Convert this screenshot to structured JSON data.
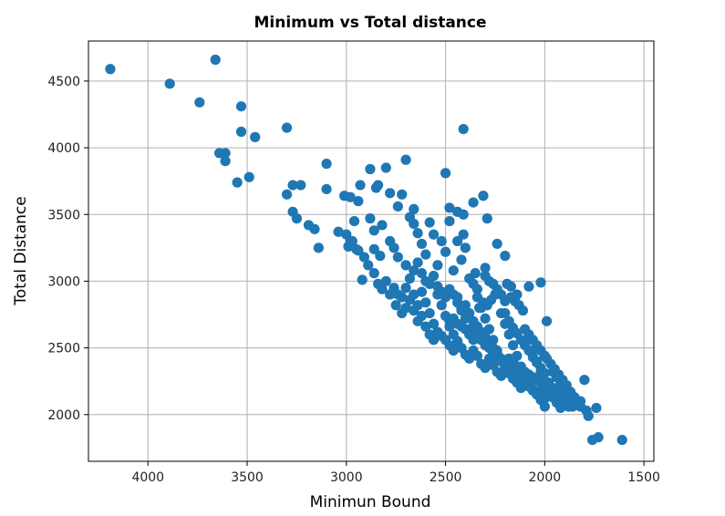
{
  "chart_data": {
    "type": "scatter",
    "title": "Minimum vs Total distance",
    "xlabel": "Minimun Bound",
    "ylabel": "Total Distance",
    "x_reversed": true,
    "xlim": [
      4300,
      1450
    ],
    "ylim": [
      1650,
      4800
    ],
    "xticks": [
      4000,
      3500,
      3000,
      2500,
      2000,
      1500
    ],
    "yticks": [
      2000,
      2500,
      3000,
      3500,
      4000,
      4500
    ],
    "grid": true,
    "color": "#1f77b4",
    "points": [
      [
        4190,
        4590
      ],
      [
        3890,
        4480
      ],
      [
        3660,
        4660
      ],
      [
        3740,
        4340
      ],
      [
        3530,
        4310
      ],
      [
        3530,
        4120
      ],
      [
        3460,
        4080
      ],
      [
        3300,
        4150
      ],
      [
        3640,
        3960
      ],
      [
        3610,
        3960
      ],
      [
        3610,
        3900
      ],
      [
        3550,
        3740
      ],
      [
        3490,
        3780
      ],
      [
        2410,
        4140
      ],
      [
        3270,
        3720
      ],
      [
        3230,
        3720
      ],
      [
        3300,
        3650
      ],
      [
        3270,
        3520
      ],
      [
        3250,
        3470
      ],
      [
        3190,
        3420
      ],
      [
        3160,
        3390
      ],
      [
        3140,
        3250
      ],
      [
        3100,
        3880
      ],
      [
        3100,
        3690
      ],
      [
        3010,
        3640
      ],
      [
        2980,
        3630
      ],
      [
        2930,
        3720
      ],
      [
        2940,
        3600
      ],
      [
        2880,
        3840
      ],
      [
        2850,
        3700
      ],
      [
        2840,
        3720
      ],
      [
        2800,
        3850
      ],
      [
        2780,
        3660
      ],
      [
        2700,
        3910
      ],
      [
        2720,
        3650
      ],
      [
        2740,
        3560
      ],
      [
        2660,
        3540
      ],
      [
        2680,
        3480
      ],
      [
        2500,
        3810
      ],
      [
        2480,
        3550
      ],
      [
        2440,
        3520
      ],
      [
        2360,
        3590
      ],
      [
        2310,
        3640
      ],
      [
        2290,
        3470
      ],
      [
        2410,
        3500
      ],
      [
        2410,
        3350
      ],
      [
        3040,
        3370
      ],
      [
        3000,
        3350
      ],
      [
        2980,
        3300
      ],
      [
        2990,
        3260
      ],
      [
        2940,
        3230
      ],
      [
        2920,
        3010
      ],
      [
        2960,
        3450
      ],
      [
        2880,
        3470
      ],
      [
        2860,
        3380
      ],
      [
        2820,
        3420
      ],
      [
        2780,
        3300
      ],
      [
        2760,
        3250
      ],
      [
        2740,
        3180
      ],
      [
        2700,
        3120
      ],
      [
        2660,
        3430
      ],
      [
        2640,
        3360
      ],
      [
        2620,
        3280
      ],
      [
        2600,
        3200
      ],
      [
        2580,
        3440
      ],
      [
        2560,
        3350
      ],
      [
        2540,
        3120
      ],
      [
        2520,
        3300
      ],
      [
        2500,
        3220
      ],
      [
        2480,
        3450
      ],
      [
        2460,
        3080
      ],
      [
        2440,
        3300
      ],
      [
        2420,
        3160
      ],
      [
        2400,
        3250
      ],
      [
        2380,
        3020
      ],
      [
        2360,
        2980
      ],
      [
        2340,
        2940
      ],
      [
        2300,
        3100
      ],
      [
        2240,
        3280
      ],
      [
        2200,
        3190
      ],
      [
        2190,
        2980
      ],
      [
        2170,
        2960
      ],
      [
        2140,
        2900
      ],
      [
        2080,
        2960
      ],
      [
        2020,
        2990
      ],
      [
        1990,
        2700
      ],
      [
        2800,
        3000
      ],
      [
        2760,
        2950
      ],
      [
        2740,
        2900
      ],
      [
        2720,
        2880
      ],
      [
        2700,
        2950
      ],
      [
        2680,
        2860
      ],
      [
        2660,
        2780
      ],
      [
        2640,
        2700
      ],
      [
        2620,
        2920
      ],
      [
        2600,
        2840
      ],
      [
        2580,
        2760
      ],
      [
        2560,
        2680
      ],
      [
        2540,
        2900
      ],
      [
        2520,
        2820
      ],
      [
        2500,
        2740
      ],
      [
        2480,
        2660
      ],
      [
        2460,
        2600
      ],
      [
        2440,
        2880
      ],
      [
        2420,
        2800
      ],
      [
        2400,
        2720
      ],
      [
        2380,
        2640
      ],
      [
        2360,
        2560
      ],
      [
        2340,
        2880
      ],
      [
        2320,
        2800
      ],
      [
        2300,
        2720
      ],
      [
        2280,
        2640
      ],
      [
        2260,
        2560
      ],
      [
        2240,
        2480
      ],
      [
        2220,
        2760
      ],
      [
        2200,
        2680
      ],
      [
        2180,
        2600
      ],
      [
        2160,
        2520
      ],
      [
        2140,
        2440
      ],
      [
        2120,
        2360
      ],
      [
        2100,
        2640
      ],
      [
        2080,
        2560
      ],
      [
        2060,
        2480
      ],
      [
        2040,
        2400
      ],
      [
        2020,
        2320
      ],
      [
        2000,
        2240
      ],
      [
        2500,
        2560
      ],
      [
        2480,
        2520
      ],
      [
        2460,
        2480
      ],
      [
        2440,
        2550
      ],
      [
        2420,
        2500
      ],
      [
        2400,
        2450
      ],
      [
        2380,
        2420
      ],
      [
        2360,
        2480
      ],
      [
        2340,
        2440
      ],
      [
        2320,
        2380
      ],
      [
        2300,
        2350
      ],
      [
        2280,
        2420
      ],
      [
        2260,
        2370
      ],
      [
        2240,
        2320
      ],
      [
        2220,
        2290
      ],
      [
        2200,
        2360
      ],
      [
        2180,
        2310
      ],
      [
        2160,
        2270
      ],
      [
        2140,
        2240
      ],
      [
        2120,
        2200
      ],
      [
        2100,
        2280
      ],
      [
        2080,
        2230
      ],
      [
        2060,
        2180
      ],
      [
        2040,
        2150
      ],
      [
        2020,
        2110
      ],
      [
        2000,
        2060
      ],
      [
        1980,
        2180
      ],
      [
        1960,
        2130
      ],
      [
        1940,
        2090
      ],
      [
        1920,
        2050
      ],
      [
        1900,
        2100
      ],
      [
        1880,
        2060
      ],
      [
        1960,
        2320
      ],
      [
        1940,
        2280
      ],
      [
        1920,
        2230
      ],
      [
        1900,
        2190
      ],
      [
        1880,
        2150
      ],
      [
        1860,
        2120
      ],
      [
        1840,
        2090
      ],
      [
        1820,
        2060
      ],
      [
        1990,
        2420
      ],
      [
        1970,
        2380
      ],
      [
        1950,
        2340
      ],
      [
        1930,
        2300
      ],
      [
        1910,
        2260
      ],
      [
        1890,
        2220
      ],
      [
        1870,
        2170
      ],
      [
        1850,
        2130
      ],
      [
        1800,
        2260
      ],
      [
        1820,
        2100
      ],
      [
        1790,
        2030
      ],
      [
        1780,
        1990
      ],
      [
        1740,
        2050
      ],
      [
        1760,
        1810
      ],
      [
        1730,
        1830
      ],
      [
        1610,
        1810
      ],
      [
        2200,
        2760
      ],
      [
        2180,
        2700
      ],
      [
        2160,
        2650
      ],
      [
        2140,
        2610
      ],
      [
        2120,
        2560
      ],
      [
        2100,
        2520
      ],
      [
        2080,
        2480
      ],
      [
        2060,
        2430
      ],
      [
        2040,
        2390
      ],
      [
        2020,
        2350
      ],
      [
        2000,
        2310
      ],
      [
        2060,
        2560
      ],
      [
        2040,
        2520
      ],
      [
        2020,
        2480
      ],
      [
        2000,
        2440
      ],
      [
        2080,
        2600
      ],
      [
        2580,
        2600
      ],
      [
        2560,
        2560
      ],
      [
        2540,
        2620
      ],
      [
        2520,
        2590
      ],
      [
        2600,
        2660
      ],
      [
        2620,
        2740
      ],
      [
        2640,
        2820
      ],
      [
        2660,
        2900
      ],
      [
        2700,
        2800
      ],
      [
        2720,
        2760
      ],
      [
        2750,
        2820
      ],
      [
        2780,
        2900
      ],
      [
        2820,
        2940
      ],
      [
        2840,
        2980
      ],
      [
        2860,
        3060
      ],
      [
        2890,
        3120
      ],
      [
        2910,
        3180
      ],
      [
        2950,
        3240
      ],
      [
        2970,
        3300
      ],
      [
        2830,
        3190
      ],
      [
        2860,
        3240
      ],
      [
        2680,
        3020
      ],
      [
        2660,
        3080
      ],
      [
        2640,
        3140
      ],
      [
        2620,
        3060
      ],
      [
        2600,
        3000
      ],
      [
        2580,
        2980
      ],
      [
        2560,
        3040
      ],
      [
        2540,
        2960
      ],
      [
        2520,
        2920
      ],
      [
        2500,
        2880
      ],
      [
        2480,
        2940
      ],
      [
        2460,
        2900
      ],
      [
        2440,
        2840
      ],
      [
        2420,
        2780
      ],
      [
        2400,
        2820
      ],
      [
        2380,
        2760
      ],
      [
        2360,
        2700
      ],
      [
        2340,
        2660
      ],
      [
        2320,
        2620
      ],
      [
        2300,
        2580
      ],
      [
        2280,
        2540
      ],
      [
        2260,
        2500
      ],
      [
        2240,
        2460
      ],
      [
        2220,
        2420
      ],
      [
        2200,
        2390
      ],
      [
        2180,
        2350
      ],
      [
        2160,
        2330
      ],
      [
        2140,
        2300
      ],
      [
        2120,
        2270
      ],
      [
        2100,
        2250
      ],
      [
        2080,
        2210
      ],
      [
        2060,
        2190
      ],
      [
        2040,
        2170
      ],
      [
        2020,
        2140
      ],
      [
        2000,
        2120
      ],
      [
        2480,
        2700
      ],
      [
        2460,
        2720
      ],
      [
        2440,
        2680
      ],
      [
        2420,
        2660
      ],
      [
        2400,
        2640
      ],
      [
        2380,
        2600
      ],
      [
        2360,
        2620
      ],
      [
        2340,
        2580
      ],
      [
        2320,
        2560
      ],
      [
        2300,
        2520
      ],
      [
        2280,
        2500
      ],
      [
        2260,
        2460
      ],
      [
        2240,
        2440
      ],
      [
        2220,
        2400
      ],
      [
        2200,
        2380
      ],
      [
        2180,
        2420
      ],
      [
        2160,
        2400
      ],
      [
        2140,
        2360
      ],
      [
        2120,
        2340
      ],
      [
        2100,
        2320
      ],
      [
        2080,
        2300
      ],
      [
        2060,
        2280
      ],
      [
        2040,
        2260
      ],
      [
        2020,
        2240
      ],
      [
        2000,
        2200
      ],
      [
        1980,
        2240
      ],
      [
        1960,
        2200
      ],
      [
        1940,
        2160
      ],
      [
        1920,
        2140
      ],
      [
        1900,
        2120
      ],
      [
        1880,
        2080
      ],
      [
        1860,
        2060
      ],
      [
        2150,
        2850
      ],
      [
        2130,
        2820
      ],
      [
        2110,
        2780
      ],
      [
        2250,
        2900
      ],
      [
        2270,
        2860
      ],
      [
        2290,
        2820
      ],
      [
        2310,
        2840
      ],
      [
        2330,
        2800
      ],
      [
        2260,
        2980
      ],
      [
        2240,
        2940
      ],
      [
        2220,
        2900
      ],
      [
        2300,
        3040
      ],
      [
        2280,
        3000
      ],
      [
        2350,
        3060
      ],
      [
        2200,
        2850
      ],
      [
        2170,
        2880
      ]
    ]
  }
}
